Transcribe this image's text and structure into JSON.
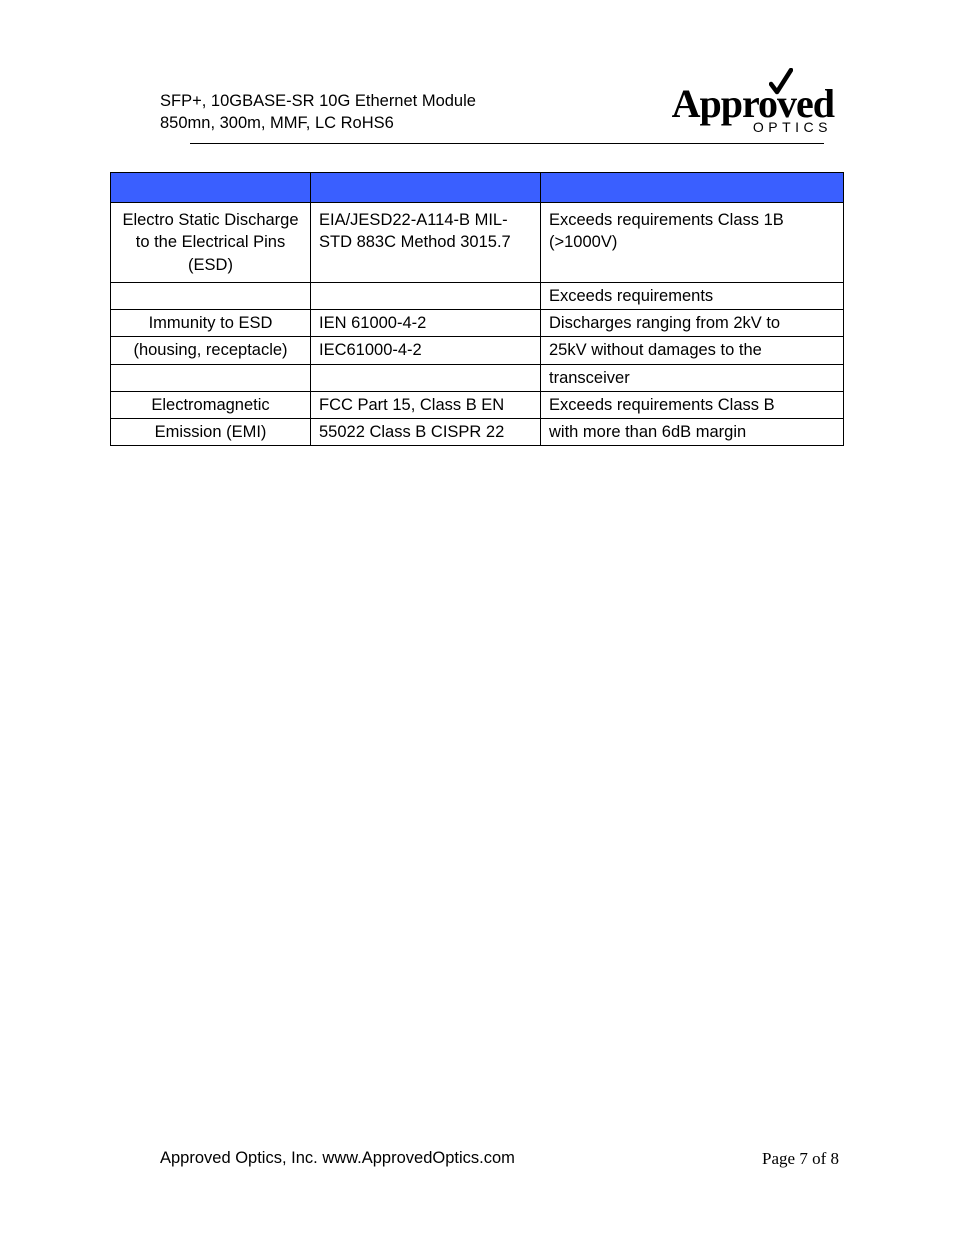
{
  "header": {
    "line1": "SFP+, 10GBASE-SR 10G Ethernet Module",
    "line2": "850mn, 300m, MMF, LC RoHS6"
  },
  "logo": {
    "main": "Approved",
    "sub": "OPTICS"
  },
  "table": {
    "header_bg": "#3a5fff",
    "border_color": "#000000",
    "rows": [
      {
        "type": "header",
        "cells": [
          "",
          "",
          ""
        ]
      },
      {
        "type": "tall",
        "cells": [
          "Electro Static Discharge to the Electrical Pins (ESD)",
          "EIA/JESD22-A114-B MIL-STD 883C Method 3015.7",
          "Exceeds requirements Class 1B (>1000V)"
        ]
      },
      {
        "cells": [
          "",
          "",
          "Exceeds requirements"
        ]
      },
      {
        "cells": [
          "Immunity to ESD",
          "IEN 61000-4-2",
          "Discharges ranging from 2kV to"
        ]
      },
      {
        "cells": [
          "(housing, receptacle)",
          "IEC61000-4-2",
          "25kV without damages to the"
        ]
      },
      {
        "cells": [
          "",
          "",
          "transceiver"
        ]
      },
      {
        "cells": [
          "Electromagnetic",
          "FCC Part 15, Class B EN",
          "Exceeds requirements Class B"
        ]
      },
      {
        "cells": [
          "Emission (EMI)",
          "55022 Class B CISPR 22",
          "with more than 6dB margin"
        ]
      }
    ]
  },
  "footer": {
    "left": "Approved Optics, Inc.  www.ApprovedOptics.com",
    "right": "Page 7 of 8"
  }
}
